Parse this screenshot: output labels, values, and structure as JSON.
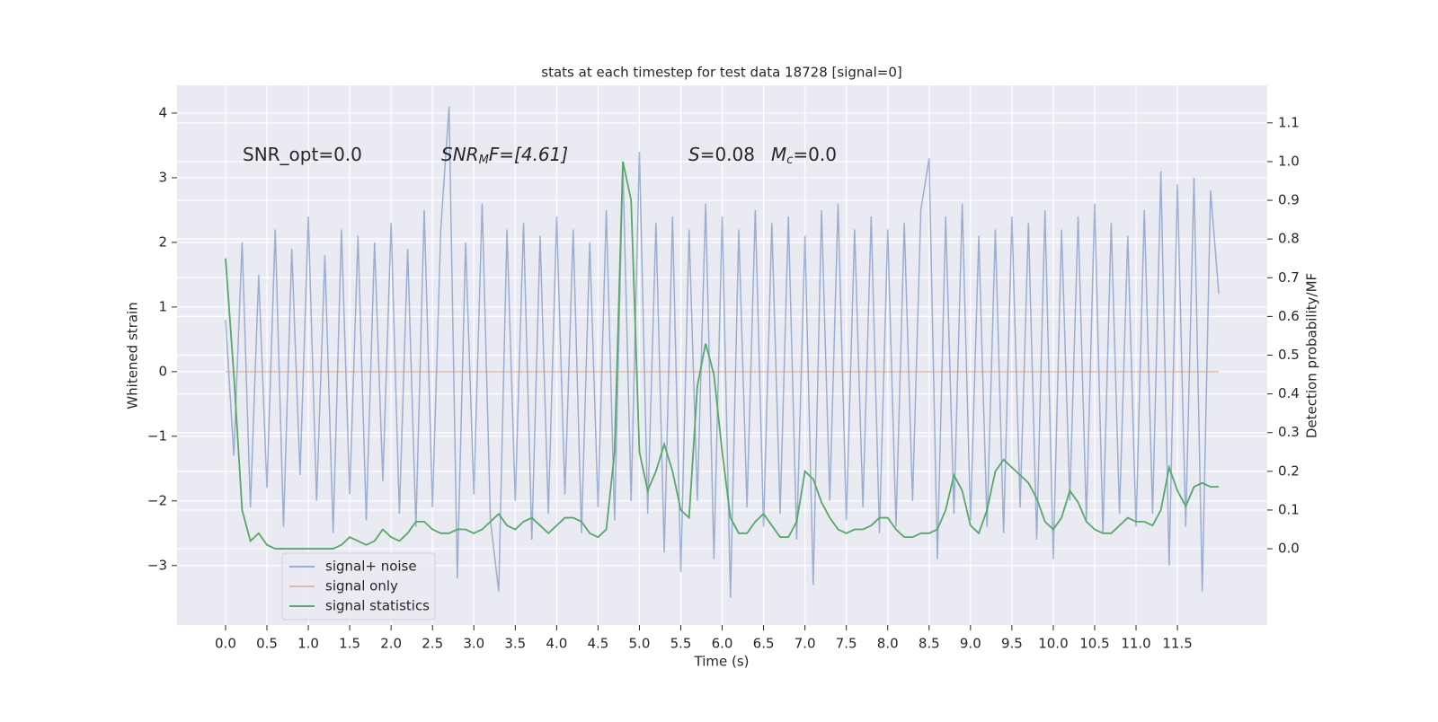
{
  "chart_data": {
    "type": "line",
    "title": "stats at each timestep for test data 18728 [signal=0]",
    "xlabel": "Time (s)",
    "ylabel": "Whitened strain",
    "y2label": "Detection probability/MF",
    "annotations": [
      {
        "parts": [
          "SNR_opt=0.0"
        ]
      },
      {
        "parts": [
          "SNR",
          "M",
          "F=[4.61]"
        ]
      },
      {
        "parts": [
          "S",
          "=0.08",
          "M",
          "c",
          "=0.0"
        ]
      }
    ],
    "xlim": [
      -0.586,
      12.585
    ],
    "ylim": [
      -3.92,
      4.43
    ],
    "y2lim": [
      -0.197,
      1.197
    ],
    "xticks": [
      {
        "value": 0,
        "label": "0.0"
      },
      0.5,
      {
        "value": 1,
        "label": "1.0"
      },
      1.5,
      {
        "value": 2,
        "label": "2.0"
      },
      2.5,
      {
        "value": 3,
        "label": "3.0"
      },
      3.5,
      {
        "value": 4,
        "label": "4.0"
      },
      4.5,
      {
        "value": 5,
        "label": "5.0"
      },
      5.5,
      {
        "value": 6,
        "label": "6.0"
      },
      6.5,
      {
        "value": 7,
        "label": "7.0"
      },
      7.5,
      {
        "value": 8,
        "label": "8.0"
      },
      8.5,
      {
        "value": 9,
        "label": "9.0"
      },
      9.5,
      {
        "value": 10,
        "label": "10.0"
      },
      10.5,
      {
        "value": 11,
        "label": "11.0"
      },
      11.5
    ],
    "yticks": [
      {
        "value": -3,
        "label": "−3"
      },
      {
        "value": -2,
        "label": "−2"
      },
      {
        "value": -1,
        "label": "−1"
      },
      0,
      1,
      2,
      3,
      4
    ],
    "y2ticks": [
      {
        "value": 0,
        "label": "0.0"
      },
      0.1,
      0.2,
      0.3,
      0.4,
      0.5,
      0.6,
      0.7,
      0.8,
      0.9,
      {
        "value": 1,
        "label": "1.0"
      },
      1.1
    ],
    "grid": true,
    "legend": "lower left",
    "x": [
      0,
      0.1,
      0.2,
      0.3,
      0.4,
      0.5,
      0.6,
      0.7,
      0.8,
      0.9,
      1,
      1.1,
      1.2,
      1.3,
      1.4,
      1.5,
      1.6,
      1.7,
      1.8,
      1.9,
      2,
      2.1,
      2.2,
      2.3,
      2.4,
      2.5,
      2.6,
      2.7,
      2.8,
      2.9,
      3,
      3.1,
      3.2,
      3.3,
      3.4,
      3.5,
      3.6,
      3.7,
      3.8,
      3.9,
      4,
      4.1,
      4.2,
      4.3,
      4.4,
      4.5,
      4.6,
      4.7,
      4.8,
      4.9,
      5,
      5.1,
      5.2,
      5.3,
      5.4,
      5.5,
      5.6,
      5.7,
      5.8,
      5.9,
      6,
      6.1,
      6.2,
      6.3,
      6.4,
      6.5,
      6.6,
      6.7,
      6.8,
      6.9,
      7,
      7.1,
      7.2,
      7.3,
      7.4,
      7.5,
      7.6,
      7.7,
      7.8,
      7.9,
      8,
      8.1,
      8.2,
      8.3,
      8.4,
      8.5,
      8.6,
      8.7,
      8.8,
      8.9,
      9,
      9.1,
      9.2,
      9.3,
      9.4,
      9.5,
      9.6,
      9.7,
      9.8,
      9.9,
      10,
      10.1,
      10.2,
      10.3,
      10.4,
      10.5,
      10.6,
      10.7,
      10.8,
      10.9,
      11,
      11.1,
      11.2,
      11.3,
      11.4,
      11.5,
      11.6,
      11.7,
      11.8,
      11.9,
      12
    ],
    "series": [
      {
        "name": "signal+ noise",
        "color": "#4c72b0",
        "opacity": 0.5,
        "values": [
          0.8,
          -1.3,
          2.0,
          -2.1,
          1.5,
          -1.8,
          2.2,
          -2.4,
          1.9,
          -1.6,
          2.4,
          -2.0,
          1.8,
          -2.5,
          2.2,
          -1.9,
          2.1,
          -2.3,
          2.0,
          -1.7,
          2.3,
          -2.2,
          1.9,
          -2.4,
          2.5,
          -2.1,
          2.2,
          4.1,
          -3.2,
          2.0,
          -1.9,
          2.6,
          -2.3,
          -3.4,
          2.2,
          -2.0,
          2.3,
          -2.6,
          2.1,
          -2.2,
          2.4,
          -1.9,
          2.2,
          -2.5,
          2.0,
          -2.1,
          2.5,
          -2.3,
          3.2,
          -2.0,
          3.4,
          -2.2,
          2.3,
          -2.8,
          2.4,
          -3.1,
          2.2,
          -2.0,
          2.6,
          -2.9,
          2.4,
          -3.5,
          2.2,
          -2.1,
          2.5,
          -2.4,
          2.3,
          -2.2,
          2.4,
          -2.6,
          2.1,
          -3.3,
          2.5,
          -2.0,
          2.6,
          -2.3,
          2.2,
          -2.1,
          2.4,
          -2.5,
          2.2,
          -2.4,
          2.3,
          -2.0,
          2.5,
          3.3,
          -2.9,
          2.4,
          -2.2,
          2.6,
          -2.3,
          2.1,
          -2.4,
          2.2,
          -2.5,
          2.4,
          -2.1,
          2.3,
          -2.6,
          2.5,
          -2.9,
          2.2,
          -2.0,
          2.4,
          -2.3,
          2.6,
          -2.5,
          2.3,
          -2.2,
          2.1,
          -2.4,
          2.5,
          -2.2,
          3.1,
          -3.0,
          2.9,
          -2.4,
          3.0,
          -3.4,
          2.8,
          1.2
        ]
      },
      {
        "name": "signal only",
        "color": "#dd8452",
        "opacity": 0.5,
        "x": [
          0,
          12
        ],
        "values": [
          0,
          0
        ]
      },
      {
        "name": "signal statistics",
        "color": "#55a868",
        "opacity": 1,
        "axis": "y2",
        "values": [
          0.75,
          0.45,
          0.1,
          0.02,
          0.04,
          0.01,
          0,
          0,
          0,
          0,
          0,
          0,
          0,
          0,
          0.01,
          0.03,
          0.02,
          0.01,
          0.02,
          0.05,
          0.03,
          0.02,
          0.04,
          0.07,
          0.07,
          0.05,
          0.04,
          0.04,
          0.05,
          0.05,
          0.04,
          0.05,
          0.07,
          0.09,
          0.06,
          0.05,
          0.07,
          0.08,
          0.06,
          0.04,
          0.06,
          0.08,
          0.08,
          0.07,
          0.04,
          0.03,
          0.05,
          0.25,
          1.0,
          0.9,
          0.25,
          0.15,
          0.2,
          0.27,
          0.2,
          0.1,
          0.08,
          0.42,
          0.53,
          0.45,
          0.25,
          0.08,
          0.04,
          0.04,
          0.07,
          0.09,
          0.06,
          0.03,
          0.03,
          0.07,
          0.2,
          0.18,
          0.12,
          0.08,
          0.05,
          0.04,
          0.05,
          0.05,
          0.06,
          0.08,
          0.08,
          0.05,
          0.03,
          0.03,
          0.04,
          0.04,
          0.05,
          0.1,
          0.19,
          0.15,
          0.06,
          0.04,
          0.1,
          0.2,
          0.23,
          0.21,
          0.19,
          0.17,
          0.13,
          0.07,
          0.05,
          0.08,
          0.15,
          0.12,
          0.07,
          0.05,
          0.04,
          0.04,
          0.06,
          0.08,
          0.07,
          0.07,
          0.06,
          0.1,
          0.21,
          0.15,
          0.11,
          0.16,
          0.17,
          0.16,
          0.16
        ]
      }
    ]
  }
}
